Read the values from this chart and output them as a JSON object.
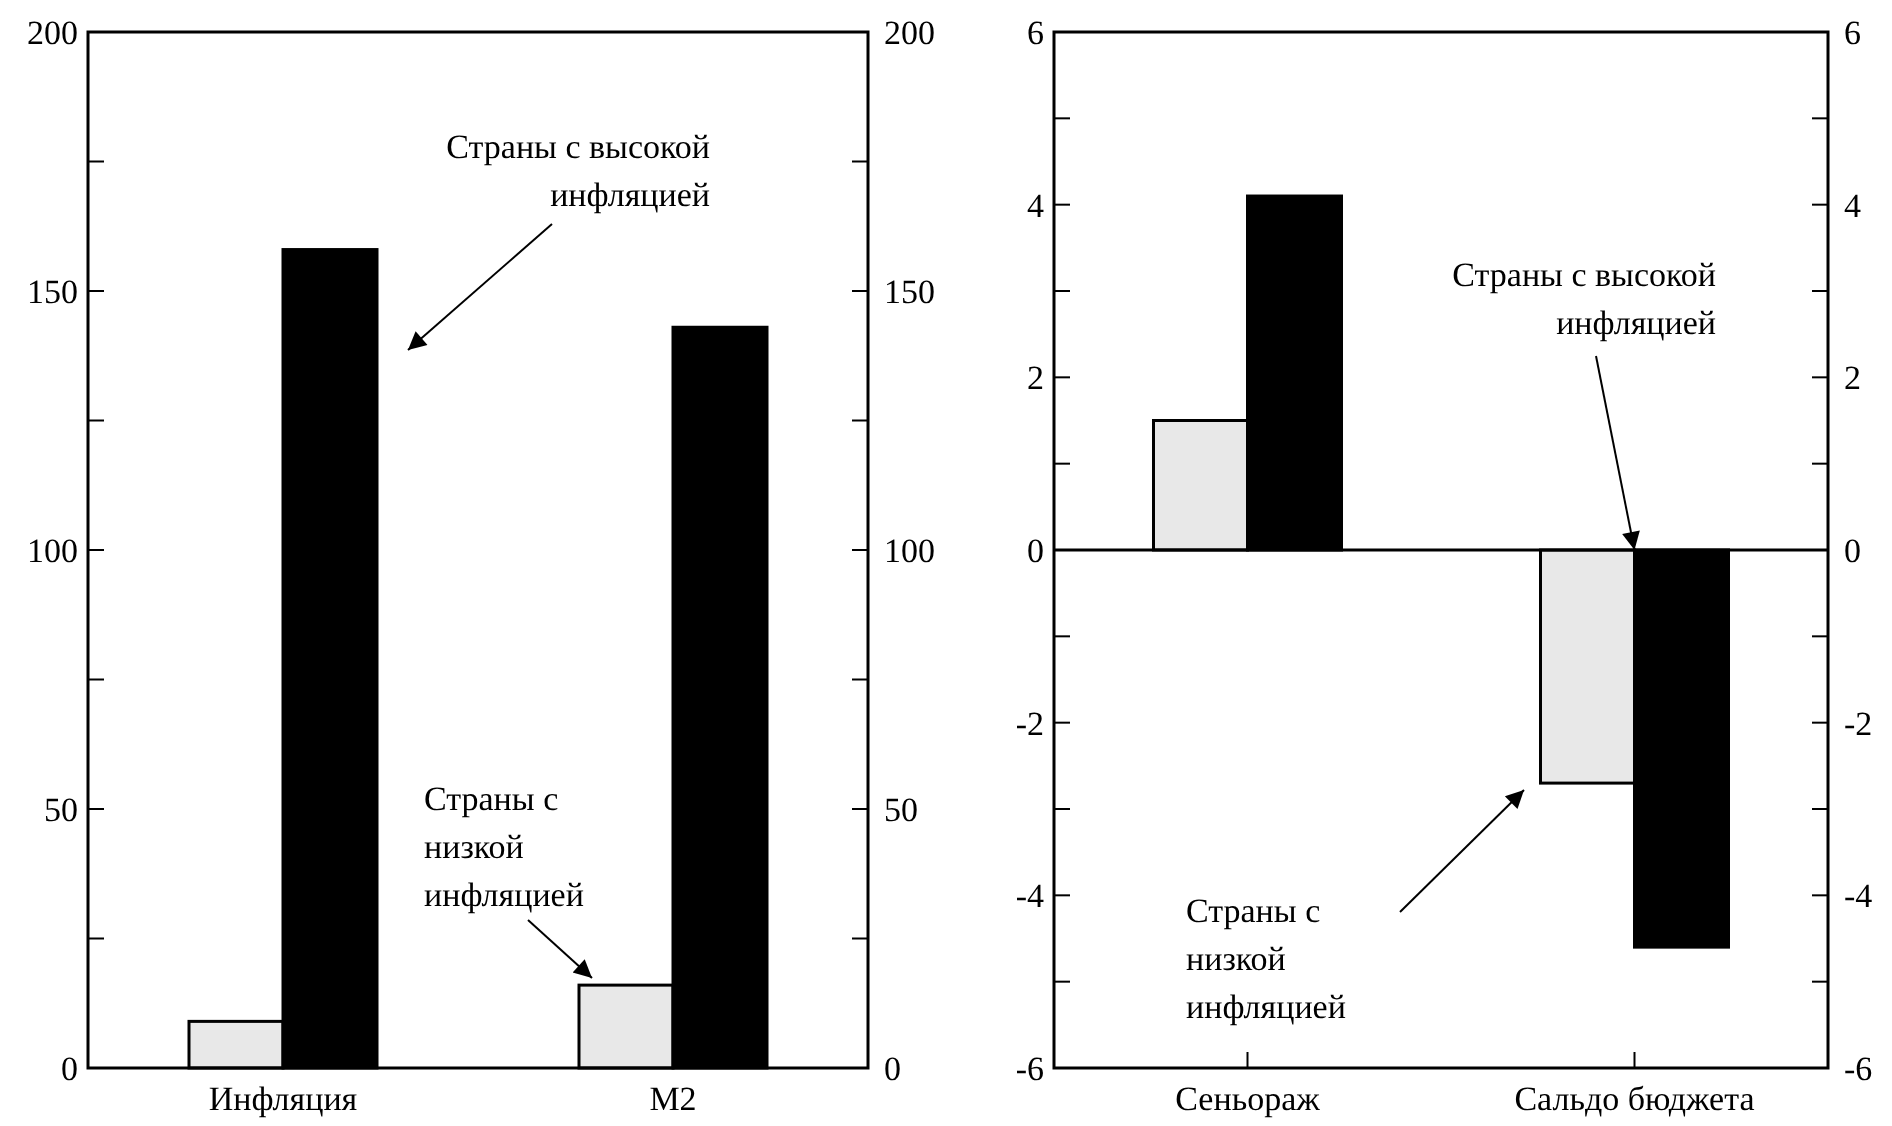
{
  "chart_data": [
    {
      "type": "bar",
      "categories": [
        "Инфляция",
        "M2"
      ],
      "series": [
        {
          "color": "#e8e8e8",
          "values": [
            9,
            16
          ]
        },
        {
          "color": "#000000",
          "values": [
            158,
            143
          ]
        }
      ],
      "ylim": [
        0,
        200
      ],
      "yticks": [
        0,
        {
          "value": 25,
          "label": null
        },
        50,
        {
          "value": 75,
          "label": null
        },
        100,
        {
          "value": 125,
          "label": null
        },
        150,
        {
          "value": 175,
          "label": null
        },
        200
      ],
      "y2lim": [
        0,
        200
      ],
      "y2ticks": [
        0,
        {
          "value": 25,
          "label": null
        },
        50,
        {
          "value": 75,
          "label": null
        },
        100,
        {
          "value": 125,
          "label": null
        },
        150,
        {
          "value": 175,
          "label": null
        },
        200
      ],
      "annotations": [
        "Страны с высокой\nинфляцией",
        "Страны с\nнизкой\nинфляцией"
      ]
    },
    {
      "type": "bar",
      "categories": [
        "Сеньораж",
        "Сальдо бюджета"
      ],
      "series": [
        {
          "color": "#e8e8e8",
          "values": [
            1.5,
            -2.7
          ]
        },
        {
          "color": "#000000",
          "values": [
            4.1,
            -4.6
          ]
        }
      ],
      "ylim": [
        -6,
        6
      ],
      "yticks": [
        -6,
        {
          "value": -5,
          "label": null
        },
        -4,
        {
          "value": -3,
          "label": null
        },
        -2,
        {
          "value": -1,
          "label": null
        },
        0,
        {
          "value": 1,
          "label": null
        },
        2,
        {
          "value": 3,
          "label": null
        },
        4,
        {
          "value": 5,
          "label": null
        },
        6
      ],
      "y2lim": [
        -6,
        6
      ],
      "y2ticks": [
        -6,
        {
          "value": -5,
          "label": null
        },
        -4,
        {
          "value": -3,
          "label": null
        },
        -2,
        {
          "value": -1,
          "label": null
        },
        0,
        {
          "value": 1,
          "label": null
        },
        2,
        {
          "value": 3,
          "label": null
        },
        4,
        {
          "value": 5,
          "label": null
        },
        6
      ],
      "ref_lines": [
        {
          "axis": "y",
          "value": 0,
          "color": "#000000"
        }
      ],
      "annotations": [
        {
          "text": "Страны с высокой\nинфляцией",
          "x": "Сальдо бюджета",
          "y": 0
        },
        "Страны с\nнизкой\nинфляцией"
      ]
    }
  ]
}
